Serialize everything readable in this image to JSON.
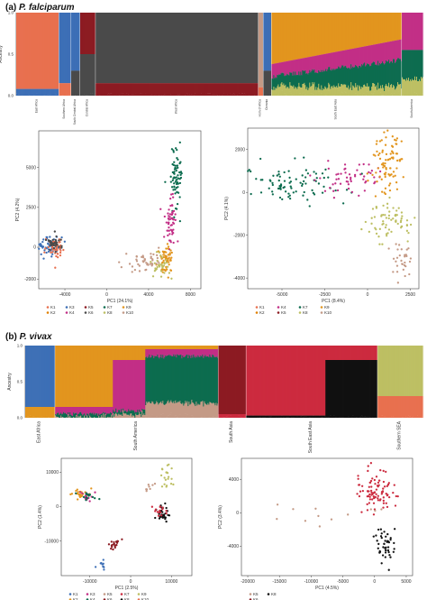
{
  "panel_a": {
    "letter": "(a)",
    "species": "P. falciparum"
  },
  "panel_b": {
    "letter": "(b)",
    "species": "P. vivax"
  },
  "chart_data": [
    {
      "id": "pf_admixture",
      "type": "area",
      "ylabel": "Ancestry",
      "yticks": [
        "0.0",
        "0.5",
        "1.0"
      ],
      "regions": [
        {
          "label": "East Africa",
          "share": 0.105
        },
        {
          "label": "Southern Africa",
          "share": 0.03
        },
        {
          "label": "South Central Africa",
          "share": 0.022
        },
        {
          "label": "Central Africa",
          "share": 0.038
        },
        {
          "label": "West Africa",
          "share": 0.4
        },
        {
          "label": "Horn of Africa",
          "share": 0.012
        },
        {
          "label": "Oceania",
          "share": 0.02
        },
        {
          "label": "South East Asia",
          "share": 0.32
        },
        {
          "label": "South America",
          "share": 0.053
        }
      ],
      "colors": {
        "K1": "#e8704f",
        "K2": "#e07f00",
        "K3": "#3d6fb6",
        "K4": "#c22f86",
        "K5": "#8c1b22",
        "K6": "#4a4a4a",
        "K7": "#0d6c4f",
        "K8": "#bdbf63",
        "K9": "#e2951e",
        "K10": "#c49a86"
      }
    },
    {
      "id": "pf_pca_left",
      "type": "scatter",
      "xlabel": "PC1 (24.1%)",
      "ylabel": "PC2 (4.2%)",
      "xticks": [
        -4000,
        0,
        4000,
        8000
      ],
      "yticks": [
        -2000,
        0,
        2500,
        5000
      ],
      "xlim": [
        -6500,
        9000
      ],
      "ylim": [
        -2600,
        7300
      ],
      "legend": [
        "K1",
        "K2",
        "K3",
        "K4",
        "K5",
        "K6",
        "K7",
        "K8",
        "K9",
        "K10"
      ],
      "clusters": [
        {
          "k": "K3",
          "cx": -5400,
          "cy": 100,
          "sx": 450,
          "sy": 300,
          "n": 55
        },
        {
          "k": "K1",
          "cx": -4900,
          "cy": 0,
          "sx": 400,
          "sy": 300,
          "n": 45
        },
        {
          "k": "K6",
          "cx": -5000,
          "cy": 200,
          "sx": 350,
          "sy": 250,
          "n": 35
        },
        {
          "k": "K7",
          "cx": 6600,
          "cy": 4500,
          "sx": 250,
          "sy": 1200,
          "n": 70
        },
        {
          "k": "K4",
          "cx": 6100,
          "cy": 1700,
          "sx": 300,
          "sy": 800,
          "n": 55
        },
        {
          "k": "K9",
          "cx": 5600,
          "cy": -800,
          "sx": 400,
          "sy": 450,
          "n": 60
        },
        {
          "k": "K10",
          "cx": 3800,
          "cy": -900,
          "sx": 1000,
          "sy": 400,
          "n": 45
        },
        {
          "k": "K8",
          "cx": 5200,
          "cy": -1100,
          "sx": 500,
          "sy": 350,
          "n": 30
        }
      ]
    },
    {
      "id": "pf_pca_right",
      "type": "scatter",
      "xlabel": "PC1 (8.4%)",
      "ylabel": "PC2 (4.1%)",
      "xticks": [
        -5000,
        -2500,
        0,
        2500
      ],
      "yticks": [
        -4000,
        -2000,
        0,
        2000
      ],
      "xlim": [
        -7000,
        3000
      ],
      "ylim": [
        -4500,
        3000
      ],
      "legend": [
        "K1",
        "K2",
        "K4",
        "K5",
        "K7",
        "K8",
        "K9",
        "K10"
      ],
      "clusters": [
        {
          "k": "K7",
          "cx": -4300,
          "cy": 400,
          "sx": 1400,
          "sy": 450,
          "n": 90
        },
        {
          "k": "K4",
          "cx": -1000,
          "cy": 600,
          "sx": 1100,
          "sy": 350,
          "n": 55
        },
        {
          "k": "K9",
          "cx": 1200,
          "cy": 1300,
          "sx": 450,
          "sy": 700,
          "n": 85
        },
        {
          "k": "K8",
          "cx": 1300,
          "cy": -1300,
          "sx": 700,
          "sy": 500,
          "n": 70
        },
        {
          "k": "K10",
          "cx": 2000,
          "cy": -3300,
          "sx": 350,
          "sy": 500,
          "n": 30
        }
      ]
    },
    {
      "id": "pv_admixture",
      "type": "area",
      "ylabel": "Ancestry",
      "yticks": [
        "0.0",
        "0.5",
        "1.0"
      ],
      "regions": [
        {
          "label": "East Africa",
          "share": 0.075
        },
        {
          "label": "South America",
          "share": 0.41
        },
        {
          "label": "South Asia",
          "share": 0.07
        },
        {
          "label": "South East Asia",
          "share": 0.33
        },
        {
          "label": "Southern SEA",
          "share": 0.115
        }
      ],
      "colors": {
        "K1": "#3d6fb6",
        "K2": "#e2951e",
        "K3": "#c22f86",
        "K4": "#0d6c4f",
        "K5": "#c49a86",
        "K6": "#8c1b22",
        "K7": "#cc2b3f",
        "K8": "#111111",
        "K9": "#bdbf63",
        "K10": "#e8704f"
      }
    },
    {
      "id": "pv_pca_left",
      "type": "scatter",
      "xlabel": "PC1 (2.5%)",
      "ylabel": "PC2 (1.4%)",
      "xticks": [
        -10000,
        0,
        10000
      ],
      "yticks": [
        -10000,
        0,
        10000
      ],
      "xlim": [
        -17000,
        15000
      ],
      "ylim": [
        -20000,
        14000
      ],
      "legend": [
        "K1",
        "K2",
        "K3",
        "K4",
        "K5",
        "K6",
        "K7",
        "K8",
        "K9",
        "K10"
      ],
      "clusters": [
        {
          "k": "K2",
          "cx": -12000,
          "cy": 3500,
          "sx": 1200,
          "sy": 700,
          "n": 25
        },
        {
          "k": "K3",
          "cx": -11000,
          "cy": 3300,
          "sx": 1000,
          "sy": 700,
          "n": 15
        },
        {
          "k": "K4",
          "cx": -10500,
          "cy": 3000,
          "sx": 1000,
          "sy": 600,
          "n": 15
        },
        {
          "k": "K6",
          "cx": -4000,
          "cy": -11000,
          "sx": 800,
          "sy": 800,
          "n": 20
        },
        {
          "k": "K1",
          "cx": -7000,
          "cy": -17000,
          "sx": 500,
          "sy": 800,
          "n": 10
        },
        {
          "k": "K8",
          "cx": 8000,
          "cy": -2000,
          "sx": 900,
          "sy": 1000,
          "n": 35
        },
        {
          "k": "K7",
          "cx": 7000,
          "cy": -1000,
          "sx": 800,
          "sy": 800,
          "n": 15
        },
        {
          "k": "K9",
          "cx": 9000,
          "cy": 9000,
          "sx": 1000,
          "sy": 2000,
          "n": 20
        },
        {
          "k": "K5",
          "cx": 5000,
          "cy": 5000,
          "sx": 1000,
          "sy": 1000,
          "n": 8
        }
      ]
    },
    {
      "id": "pv_pca_right",
      "type": "scatter",
      "xlabel": "PC1 (4.5%)",
      "ylabel": "PC2 (3.4%)",
      "xticks": [
        -20000,
        -15000,
        -10000,
        -5000,
        0,
        5000
      ],
      "yticks": [
        -4000,
        0,
        4000
      ],
      "xlim": [
        -21000,
        6000
      ],
      "ylim": [
        -7500,
        6500
      ],
      "legend": [
        "K5",
        "K6",
        "K8"
      ],
      "clusters": [
        {
          "k": "K7",
          "cx": 500,
          "cy": 2500,
          "sx": 1500,
          "sy": 1300,
          "n": 90
        },
        {
          "k": "K8",
          "cx": 1500,
          "cy": -4000,
          "sx": 800,
          "sy": 1100,
          "n": 45
        },
        {
          "k": "K5",
          "cx": -10000,
          "cy": -500,
          "sx": 5000,
          "sy": 1200,
          "n": 12
        }
      ]
    }
  ]
}
